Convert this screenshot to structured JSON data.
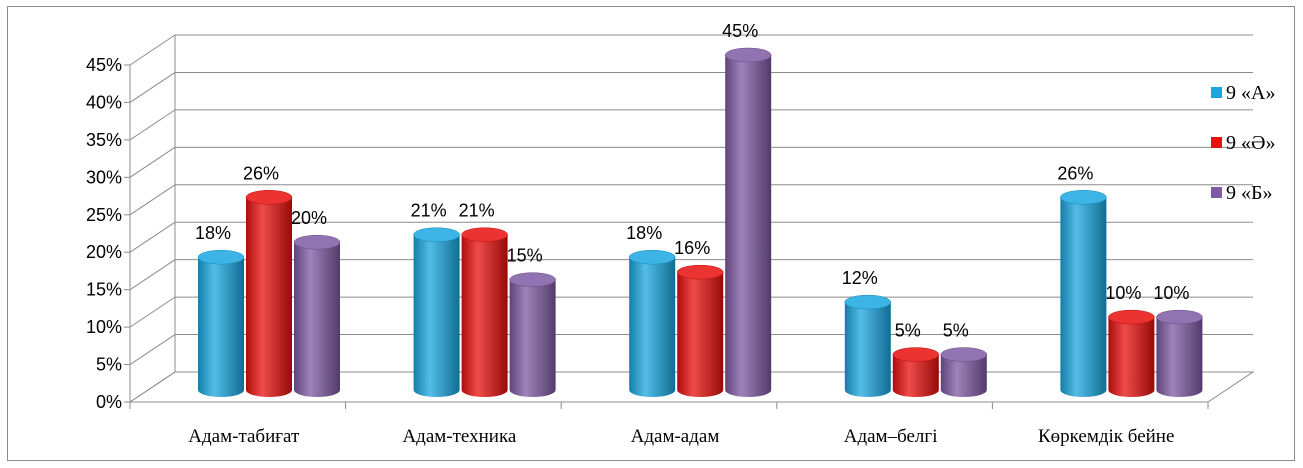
{
  "chart_data": {
    "type": "bar",
    "categories": [
      "Адам-табиғат",
      "Адам-техника",
      "Адам-адам",
      "Адам–белгі",
      "Көркемдік бейне"
    ],
    "series": [
      {
        "name": "9 «А»",
        "values": [
          18,
          21,
          18,
          12,
          26
        ],
        "labels": [
          "18%",
          "21%",
          "18%",
          "12%",
          "26%"
        ],
        "color": "#1aa7e0"
      },
      {
        "name": "9 «Ә»",
        "values": [
          26,
          21,
          16,
          5,
          10
        ],
        "labels": [
          "26%",
          "21%",
          "16%",
          "5%",
          "10%"
        ],
        "color": "#e8100d"
      },
      {
        "name": "9 «Б»",
        "values": [
          20,
          15,
          45,
          5,
          10
        ],
        "labels": [
          "20%",
          "15%",
          "45%",
          "5%",
          "10%"
        ],
        "color": "#7e5aa3"
      }
    ],
    "y_ticks": [
      "0%",
      "5%",
      "10%",
      "15%",
      "20%",
      "25%",
      "30%",
      "35%",
      "40%",
      "45%"
    ],
    "ylim": [
      0,
      45
    ],
    "grid": true,
    "legend_position": "right",
    "style": "3d-cylinder"
  }
}
